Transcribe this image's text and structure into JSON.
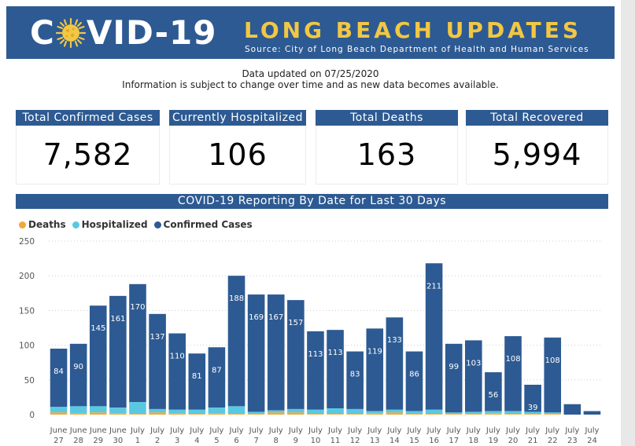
{
  "banner": {
    "logo_prefix": "C",
    "logo_suffix": "VID-19",
    "title": "LONG BEACH UPDATES",
    "source": "Source: City of Long Beach Department of Health and Human Services"
  },
  "info": {
    "updated": "Data updated on 07/25/2020",
    "disclaimer": "Information is subject to change over time and as new data becomes available."
  },
  "kpis": [
    {
      "label": "Total Confirmed Cases",
      "value": "7,582"
    },
    {
      "label": "Currently Hospitalized",
      "value": "106"
    },
    {
      "label": "Total Deaths",
      "value": "163"
    },
    {
      "label": "Total Recovered",
      "value": "5,994"
    }
  ],
  "chart_panel": {
    "title": "COVID-19 Reporting By Date for Last 30 Days",
    "legend": [
      {
        "label": "Deaths",
        "color": "#f0a93b"
      },
      {
        "label": "Hospitalized",
        "color": "#5bc8e2"
      },
      {
        "label": "Confirmed Cases",
        "color": "#2d5a92"
      }
    ]
  },
  "chart_data": {
    "type": "bar",
    "stacked": true,
    "ylim": [
      0,
      250
    ],
    "yticks": [
      0,
      50,
      100,
      150,
      200,
      250
    ],
    "grid": true,
    "legend_position": "top-left",
    "categories": [
      [
        "June",
        "27"
      ],
      [
        "June",
        "28"
      ],
      [
        "June",
        "29"
      ],
      [
        "June",
        "30"
      ],
      [
        "July",
        "1"
      ],
      [
        "July",
        "2"
      ],
      [
        "July",
        "3"
      ],
      [
        "July",
        "4"
      ],
      [
        "July",
        "5"
      ],
      [
        "July",
        "6"
      ],
      [
        "July",
        "7"
      ],
      [
        "July",
        "8"
      ],
      [
        "July",
        "9"
      ],
      [
        "July",
        "10"
      ],
      [
        "July",
        "11"
      ],
      [
        "July",
        "12"
      ],
      [
        "July",
        "13"
      ],
      [
        "July",
        "14"
      ],
      [
        "July",
        "15"
      ],
      [
        "July",
        "16"
      ],
      [
        "July",
        "17"
      ],
      [
        "July",
        "18"
      ],
      [
        "July",
        "19"
      ],
      [
        "July",
        "20"
      ],
      [
        "July",
        "21"
      ],
      [
        "July",
        "22"
      ],
      [
        "July",
        "23"
      ],
      [
        "July",
        "24"
      ]
    ],
    "series": [
      {
        "name": "Deaths",
        "color": "#f0a93b",
        "values": [
          3,
          2,
          3,
          2,
          1,
          3,
          2,
          1,
          2,
          1,
          1,
          3,
          3,
          1,
          1,
          1,
          2,
          3,
          1,
          1,
          1,
          1,
          2,
          1,
          1,
          1,
          0,
          0
        ]
      },
      {
        "name": "Hospitalized",
        "color": "#5bc8e2",
        "values": [
          8,
          10,
          9,
          8,
          17,
          5,
          5,
          6,
          8,
          11,
          3,
          3,
          5,
          6,
          8,
          7,
          3,
          4,
          4,
          6,
          2,
          3,
          3,
          4,
          3,
          2,
          0,
          0
        ]
      },
      {
        "name": "Confirmed Cases",
        "color": "#2d5a92",
        "values": [
          84,
          90,
          145,
          161,
          170,
          137,
          110,
          81,
          87,
          188,
          169,
          167,
          157,
          113,
          113,
          83,
          119,
          133,
          86,
          211,
          99,
          103,
          56,
          108,
          39,
          108,
          15,
          5
        ],
        "labels": [
          "84",
          "90",
          "145",
          "161",
          "170",
          "137",
          "110",
          "81",
          "87",
          "188",
          "169",
          "167",
          "157",
          "113",
          "113",
          "83",
          "119",
          "133",
          "86",
          "211",
          "99",
          "103",
          "56",
          "108",
          "39",
          "108",
          "",
          ""
        ]
      }
    ]
  }
}
